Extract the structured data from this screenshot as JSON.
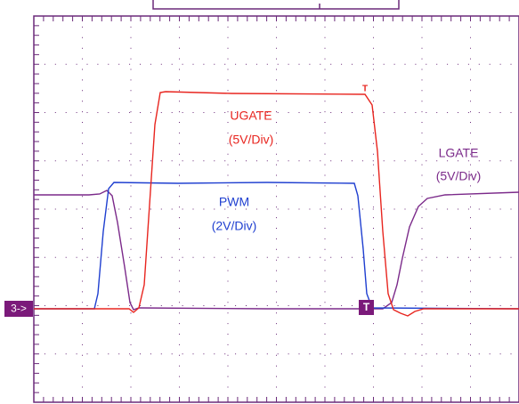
{
  "channel_marker": "3->",
  "trigger_marker": "T",
  "ugate_marker": "T",
  "traces": [
    {
      "name": "UGATE",
      "scale": "(5V/Div)"
    },
    {
      "name": "PWM",
      "scale": "(2V/Div)"
    },
    {
      "name": "LGATE",
      "scale": "(5V/Div)"
    }
  ]
}
